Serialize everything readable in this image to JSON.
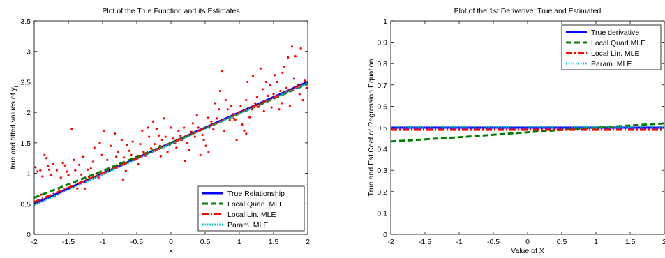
{
  "chart_data": [
    {
      "type": "line",
      "title": "Plot of the True Function and its Estimates",
      "xlabel": "x",
      "ylabel_main": "true and fitted values of y",
      "ylabel_sub": "i",
      "xlim": [
        -2,
        2
      ],
      "ylim": [
        0,
        3.5
      ],
      "xticks": [
        "-2",
        "-1.5",
        "-1",
        "-0.5",
        "0",
        "0.5",
        "1",
        "1.5",
        "2"
      ],
      "yticks": [
        "0",
        "0.5",
        "1",
        "1.5",
        "2",
        "2.5",
        "3",
        "3.5"
      ],
      "legend_position": "bottom-right",
      "series": [
        {
          "name": "True Relationship",
          "color": "#0000ff",
          "style": "solid",
          "x": [
            -2,
            2
          ],
          "y": [
            0.5,
            2.5
          ]
        },
        {
          "name": "Local Quad. MLE.",
          "color": "#008000",
          "style": "dashed",
          "x": [
            -2,
            -1,
            0,
            1,
            2
          ],
          "y": [
            0.6,
            1.04,
            1.5,
            1.98,
            2.47
          ]
        },
        {
          "name": "Local Lin. MLE",
          "color": "#ff0000",
          "style": "dashdot",
          "x": [
            -2,
            -1,
            0,
            1,
            2
          ],
          "y": [
            0.53,
            1.0,
            1.49,
            1.99,
            2.49
          ]
        },
        {
          "name": "Param. MLE",
          "color": "#00bfbf",
          "style": "dotted",
          "x": [
            -2,
            2
          ],
          "y": [
            0.48,
            2.48
          ]
        }
      ],
      "scatter": {
        "color": "#ff0000",
        "points": [
          [
            -1.98,
            1.1
          ],
          [
            -1.95,
            1.03
          ],
          [
            -1.91,
            1.05
          ],
          [
            -1.88,
            0.95
          ],
          [
            -1.85,
            1.3
          ],
          [
            -1.82,
            1.25
          ],
          [
            -1.8,
            1.12
          ],
          [
            -1.78,
            1.06
          ],
          [
            -1.75,
            0.97
          ],
          [
            -1.72,
            1.15
          ],
          [
            -1.7,
            0.62
          ],
          [
            -1.67,
            1.05
          ],
          [
            -1.64,
            0.75
          ],
          [
            -1.61,
            0.93
          ],
          [
            -1.58,
            1.17
          ],
          [
            -1.55,
            1.13
          ],
          [
            -1.52,
            1.03
          ],
          [
            -1.5,
            0.97
          ],
          [
            -1.48,
            0.82
          ],
          [
            -1.45,
            1.73
          ],
          [
            -1.42,
            1.22
          ],
          [
            -1.4,
            1.05
          ],
          [
            -1.37,
            0.75
          ],
          [
            -1.34,
            1.14
          ],
          [
            -1.31,
            0.98
          ],
          [
            -1.28,
            1.27
          ],
          [
            -1.25,
            0.85
          ],
          [
            -1.22,
            1.06
          ],
          [
            -1.2,
            0.94
          ],
          [
            -1.17,
            1.08
          ],
          [
            -1.14,
            1.19
          ],
          [
            -1.12,
            1.42
          ],
          [
            -1.09,
            1.0
          ],
          [
            -1.06,
            0.93
          ],
          [
            -1.04,
            1.5
          ],
          [
            -1.01,
            1.3
          ],
          [
            -0.98,
            1.7
          ],
          [
            -0.96,
            1.03
          ],
          [
            -0.93,
            1.22
          ],
          [
            -0.9,
            1.05
          ],
          [
            -0.88,
            1.45
          ],
          [
            -0.85,
            1.11
          ],
          [
            -0.82,
            1.65
          ],
          [
            -0.8,
            1.27
          ],
          [
            -0.77,
            1.35
          ],
          [
            -0.74,
            1.16
          ],
          [
            -0.72,
            1.55
          ],
          [
            -0.69,
            1.26
          ],
          [
            -0.66,
            1.04
          ],
          [
            -0.64,
            1.46
          ],
          [
            -0.61,
            1.37
          ],
          [
            -0.58,
            1.3
          ],
          [
            -0.56,
            1.52
          ],
          [
            -0.53,
            1.22
          ],
          [
            -0.5,
            1.23
          ],
          [
            -0.48,
            1.15
          ],
          [
            -0.45,
            1.48
          ],
          [
            -0.42,
            1.7
          ],
          [
            -0.4,
            1.35
          ],
          [
            -0.37,
            1.29
          ],
          [
            -0.34,
            1.75
          ],
          [
            -0.32,
            1.6
          ],
          [
            -0.29,
            1.41
          ],
          [
            -0.26,
            1.85
          ],
          [
            -0.24,
            1.48
          ],
          [
            -0.21,
            1.73
          ],
          [
            -0.18,
            1.62
          ],
          [
            -0.16,
            1.45
          ],
          [
            -0.13,
            1.55
          ],
          [
            -0.1,
            1.9
          ],
          [
            -0.08,
            1.6
          ],
          [
            -0.05,
            1.35
          ],
          [
            -0.02,
            1.46
          ],
          [
            0.0,
            1.75
          ],
          [
            0.03,
            1.57
          ],
          [
            0.06,
            1.5
          ],
          [
            0.08,
            1.42
          ],
          [
            0.11,
            1.7
          ],
          [
            0.14,
            1.62
          ],
          [
            0.16,
            1.55
          ],
          [
            0.19,
            1.75
          ],
          [
            0.22,
            1.6
          ],
          [
            0.24,
            1.5
          ],
          [
            0.27,
            1.38
          ],
          [
            0.3,
            1.68
          ],
          [
            0.32,
            1.82
          ],
          [
            0.35,
            1.6
          ],
          [
            0.38,
            1.95
          ],
          [
            0.4,
            1.75
          ],
          [
            0.43,
            1.3
          ],
          [
            0.46,
            1.63
          ],
          [
            0.48,
            1.55
          ],
          [
            0.51,
            1.45
          ],
          [
            0.54,
            1.91
          ],
          [
            0.56,
            1.75
          ],
          [
            0.59,
            1.85
          ],
          [
            0.62,
            1.72
          ],
          [
            0.64,
            2.15
          ],
          [
            0.67,
            1.9
          ],
          [
            0.7,
            2.05
          ],
          [
            0.72,
            2.35
          ],
          [
            0.75,
            2.68
          ],
          [
            0.78,
            1.7
          ],
          [
            0.8,
            2.2
          ],
          [
            0.83,
            2.05
          ],
          [
            0.86,
            1.87
          ],
          [
            0.88,
            2.1
          ],
          [
            0.91,
            1.97
          ],
          [
            0.94,
            1.88
          ],
          [
            0.96,
            1.55
          ],
          [
            0.99,
            2.0
          ],
          [
            1.02,
            2.1
          ],
          [
            1.04,
            1.8
          ],
          [
            1.07,
            1.7
          ],
          [
            1.1,
            2.2
          ],
          [
            1.12,
            2.5
          ],
          [
            1.15,
            1.92
          ],
          [
            1.18,
            2.05
          ],
          [
            1.2,
            2.6
          ],
          [
            1.23,
            2.15
          ],
          [
            1.26,
            2.25
          ],
          [
            1.28,
            2.09
          ],
          [
            1.31,
            2.72
          ],
          [
            1.34,
            2.38
          ],
          [
            1.36,
            2.02
          ],
          [
            1.39,
            2.5
          ],
          [
            1.42,
            2.27
          ],
          [
            1.44,
            2.2
          ],
          [
            1.47,
            2.08
          ],
          [
            1.5,
            2.3
          ],
          [
            1.52,
            2.61
          ],
          [
            1.55,
            2.5
          ],
          [
            1.58,
            2.05
          ],
          [
            1.6,
            2.35
          ],
          [
            1.63,
            2.65
          ],
          [
            1.66,
            2.75
          ],
          [
            1.68,
            2.4
          ],
          [
            1.71,
            2.9
          ],
          [
            1.74,
            2.1
          ],
          [
            1.77,
            3.08
          ],
          [
            1.8,
            2.55
          ],
          [
            1.82,
            2.92
          ],
          [
            1.85,
            2.45
          ],
          [
            1.88,
            2.3
          ],
          [
            1.9,
            3.05
          ],
          [
            1.93,
            2.2
          ],
          [
            1.96,
            2.52
          ],
          [
            1.98,
            2.4
          ],
          [
            -1.9,
            0.65
          ],
          [
            -0.15,
            1.28
          ],
          [
            0.92,
            1.9
          ],
          [
            1.45,
            2.45
          ],
          [
            -0.7,
            0.9
          ],
          [
            0.55,
            1.35
          ],
          [
            1.62,
            2.15
          ],
          [
            -1.26,
            0.75
          ],
          [
            0.2,
            1.2
          ],
          [
            1.1,
            1.65
          ]
        ]
      }
    },
    {
      "type": "line",
      "title": "Plot of the 1st Derivative: True and Estimated",
      "xlabel": "Value of X",
      "ylabel": "True and Est.Coef.of Regression Equation",
      "xlim": [
        -2,
        2
      ],
      "ylim": [
        0,
        1
      ],
      "xticks": [
        "-2",
        "-1.5",
        "-1",
        "-0.5",
        "0",
        "0.5",
        "1",
        "1.5",
        "2"
      ],
      "yticks": [
        "0",
        "0.1",
        "0.2",
        "0.3",
        "0.4",
        "0.5",
        "0.6",
        "0.7",
        "0.8",
        "0.9",
        "1"
      ],
      "legend_position": "top-right",
      "series": [
        {
          "name": "True derivative",
          "color": "#0000ff",
          "style": "solid",
          "x": [
            -2,
            2
          ],
          "y": [
            0.5,
            0.5
          ]
        },
        {
          "name": "Local Quad MLE",
          "color": "#008000",
          "style": "dashed",
          "x": [
            -2,
            -1,
            0,
            1,
            2
          ],
          "y": [
            0.435,
            0.455,
            0.478,
            0.5,
            0.52
          ]
        },
        {
          "name": "Local Lin. MLE",
          "color": "#ff0000",
          "style": "dashdot",
          "x": [
            -2,
            2
          ],
          "y": [
            0.49,
            0.49
          ]
        },
        {
          "name": "Param. MLE",
          "color": "#00bfbf",
          "style": "dotted",
          "x": [
            -2,
            2
          ],
          "y": [
            0.505,
            0.505
          ]
        }
      ]
    }
  ]
}
